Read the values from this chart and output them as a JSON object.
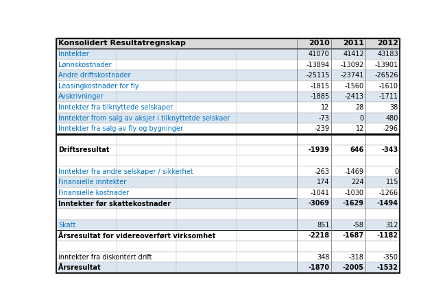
{
  "title": "Konsolidert Resultatregnskap",
  "years": [
    "2010",
    "2011",
    "2012"
  ],
  "rows": [
    {
      "label": "Inntekter",
      "values": [
        "41070",
        "41412",
        "43183"
      ],
      "style": "normal",
      "color_label": "blue",
      "underline": false,
      "underline_vals": [
        false,
        false,
        false
      ]
    },
    {
      "label": "Lønnskostnader",
      "values": [
        "-13894",
        "-13092",
        "-13901"
      ],
      "style": "normal",
      "color_label": "blue",
      "underline": false,
      "underline_vals": [
        false,
        false,
        false
      ]
    },
    {
      "label": "Andre driftskostnader",
      "values": [
        "-25115",
        "-23741",
        "-26526"
      ],
      "style": "normal",
      "color_label": "blue",
      "underline": false,
      "underline_vals": [
        false,
        false,
        false
      ]
    },
    {
      "label": "Leasingkostnader for fly",
      "values": [
        "-1815",
        "-1560",
        "-1610"
      ],
      "style": "normal",
      "color_label": "blue",
      "underline": false,
      "underline_vals": [
        false,
        false,
        false
      ]
    },
    {
      "label": "Avskrivninger",
      "values": [
        "-1885",
        "-2413",
        "-1711"
      ],
      "style": "normal",
      "color_label": "blue",
      "underline": false,
      "underline_vals": [
        false,
        false,
        false
      ]
    },
    {
      "label": "Inntekter fra tilknyttede selskaper",
      "values": [
        "12",
        "28",
        "38"
      ],
      "style": "normal",
      "color_label": "blue",
      "underline": false,
      "underline_vals": [
        false,
        false,
        false
      ]
    },
    {
      "label": "Inntekter from salg av aksjer i tilknyttetde selskaer",
      "values": [
        "-73",
        "0",
        "480"
      ],
      "style": "normal",
      "color_label": "blue",
      "underline": false,
      "underline_vals": [
        false,
        false,
        false
      ]
    },
    {
      "label": "Inntekter fra salg av fly og bygninger",
      "values": [
        "-239",
        "12",
        "-296"
      ],
      "style": "normal",
      "color_label": "blue",
      "underline": true,
      "underline_vals": [
        false,
        true,
        false
      ]
    },
    {
      "label": "",
      "values": [
        "",
        "",
        ""
      ],
      "style": "spacer",
      "color_label": "black",
      "underline": false,
      "underline_vals": [
        false,
        false,
        false
      ]
    },
    {
      "label": "Driftsresultat",
      "values": [
        "-1939",
        "646",
        "-343"
      ],
      "style": "bold",
      "color_label": "black",
      "underline": false,
      "underline_vals": [
        false,
        false,
        false
      ]
    },
    {
      "label": "",
      "values": [
        "",
        "",
        ""
      ],
      "style": "spacer",
      "color_label": "black",
      "underline": false,
      "underline_vals": [
        false,
        false,
        false
      ]
    },
    {
      "label": "Inntekter fra andre selskaper / sikkerhet",
      "values": [
        "-263",
        "-1469",
        "0"
      ],
      "style": "normal",
      "color_label": "blue",
      "underline": false,
      "underline_vals": [
        false,
        false,
        false
      ]
    },
    {
      "label": "Finansielle inntekter",
      "values": [
        "174",
        "224",
        "115"
      ],
      "style": "normal",
      "color_label": "blue",
      "underline": false,
      "underline_vals": [
        false,
        false,
        false
      ]
    },
    {
      "label": "Finansielle kostnader",
      "values": [
        "-1041",
        "-1030",
        "-1266"
      ],
      "style": "normal",
      "color_label": "blue",
      "underline": true,
      "underline_vals": [
        false,
        false,
        false
      ]
    },
    {
      "label": "Inntekter før skattekostnader",
      "values": [
        "-3069",
        "-1629",
        "-1494"
      ],
      "style": "bold",
      "color_label": "black",
      "underline": false,
      "underline_vals": [
        false,
        false,
        false
      ]
    },
    {
      "label": "",
      "values": [
        "",
        "",
        ""
      ],
      "style": "spacer",
      "color_label": "black",
      "underline": false,
      "underline_vals": [
        false,
        false,
        false
      ]
    },
    {
      "label": "Skatt",
      "values": [
        "851",
        "-58",
        "312"
      ],
      "style": "normal",
      "color_label": "blue",
      "underline": true,
      "underline_vals": [
        true,
        true,
        true
      ]
    },
    {
      "label": "Årsresultat for videreoverført virksomhet",
      "values": [
        "-2218",
        "-1687",
        "-1182"
      ],
      "style": "bold",
      "color_label": "black",
      "underline": false,
      "underline_vals": [
        false,
        false,
        false
      ]
    },
    {
      "label": "",
      "values": [
        "",
        "",
        ""
      ],
      "style": "spacer",
      "color_label": "black",
      "underline": false,
      "underline_vals": [
        false,
        false,
        false
      ]
    },
    {
      "label": "inntekter fra diskontert drift",
      "values": [
        "348",
        "-318",
        "-350"
      ],
      "style": "normal",
      "color_label": "black",
      "underline": false,
      "underline_vals": [
        false,
        false,
        false
      ]
    },
    {
      "label": "Årsresultat",
      "values": [
        "-1870",
        "-2005",
        "-1532"
      ],
      "style": "bold",
      "color_label": "black",
      "underline": true,
      "underline_vals": [
        true,
        true,
        true
      ]
    }
  ],
  "header_bg": "#d9d9d9",
  "header_fg": "#000000",
  "row_bg_light": "#dce6f1",
  "row_bg_white": "#ffffff",
  "blue_text": "#0070c0",
  "normal_text": "#000000",
  "thick_sep_after_row": 7,
  "num_subcols": 4,
  "figw": 6.49,
  "figh": 4.5,
  "dpi": 100
}
